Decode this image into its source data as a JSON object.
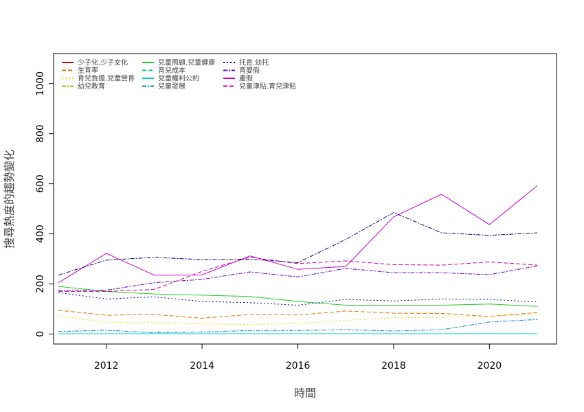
{
  "chart_data": {
    "type": "line",
    "xlabel": "時間",
    "ylabel": "搜尋熱度的趨勢變化",
    "xlim": [
      2010.9,
      2021.4
    ],
    "ylim": [
      -40,
      1120
    ],
    "xticks": [
      2012,
      2014,
      2016,
      2018,
      2020
    ],
    "yticks": [
      0,
      200,
      400,
      600,
      800,
      1000
    ],
    "x": [
      2011,
      2012,
      2013,
      2014,
      2015,
      2016,
      2017,
      2018,
      2019,
      2020,
      2021
    ],
    "legend_position": "top-left",
    "series": [
      {
        "name": "少子化.少子女化",
        "color": "#cc0000",
        "dash": "solid",
        "values": [
          null,
          null,
          null,
          null,
          null,
          null,
          null,
          null,
          null,
          null,
          null
        ]
      },
      {
        "name": "生育率",
        "color": "#e07000",
        "dash": "6,3",
        "values": [
          95,
          75,
          78,
          63,
          78,
          76,
          92,
          83,
          82,
          70,
          86
        ]
      },
      {
        "name": "育兒負擔.兒童營育",
        "color": "#ffd000",
        "dash": "2,3",
        "values": [
          72,
          47,
          47,
          40,
          38,
          42,
          55,
          65,
          67,
          70,
          80
        ]
      },
      {
        "name": "幼兒教育",
        "color": "#88cc00",
        "dash": "6,2,2,2",
        "values": [
          null,
          null,
          null,
          null,
          null,
          null,
          null,
          null,
          null,
          null,
          null
        ]
      },
      {
        "name": "兒童照顧.兒童健康",
        "color": "#22cc22",
        "dash": "solid",
        "values": [
          190,
          170,
          160,
          155,
          150,
          130,
          115,
          115,
          115,
          120,
          110
        ]
      },
      {
        "name": "育兒成本",
        "color": "#00cc77",
        "dash": "6,3",
        "values": [
          null,
          null,
          null,
          null,
          null,
          null,
          null,
          null,
          null,
          null,
          null
        ]
      },
      {
        "name": "兒童權利公約",
        "color": "#00cccc",
        "dash": "solid",
        "values": [
          1,
          1,
          1,
          1,
          1,
          1,
          1,
          1,
          1,
          1,
          1
        ]
      },
      {
        "name": "兒童發展",
        "color": "#0088cc",
        "dash": "6,2,2,2",
        "values": [
          10,
          15,
          5,
          8,
          14,
          14,
          17,
          12,
          17,
          48,
          58
        ]
      },
      {
        "name": "托育.幼托",
        "color": "#0000aa",
        "dash": "2,3",
        "values": [
          165,
          140,
          148,
          130,
          125,
          115,
          138,
          132,
          140,
          138,
          128
        ]
      },
      {
        "name": "育嬰假",
        "color": "#5500cc",
        "dash": "6,2,2,2",
        "values": [
          175,
          175,
          205,
          218,
          248,
          228,
          262,
          245,
          245,
          237,
          272
        ]
      },
      {
        "name": "產假",
        "color": "#cc00cc",
        "dash": "solid",
        "values": [
          205,
          322,
          235,
          236,
          312,
          258,
          270,
          468,
          558,
          437,
          593
        ]
      },
      {
        "name": "兒童津貼.育兒津貼",
        "color": "#cc0099",
        "dash": "6,3",
        "values": [
          170,
          170,
          178,
          250,
          307,
          281,
          292,
          277,
          275,
          288,
          275
        ]
      },
      {
        "name": "",
        "color": "#000088",
        "dash": "6,2,2,2",
        "values": [
          235,
          295,
          306,
          297,
          299,
          285,
          378,
          485,
          404,
          394,
          404
        ]
      }
    ]
  }
}
